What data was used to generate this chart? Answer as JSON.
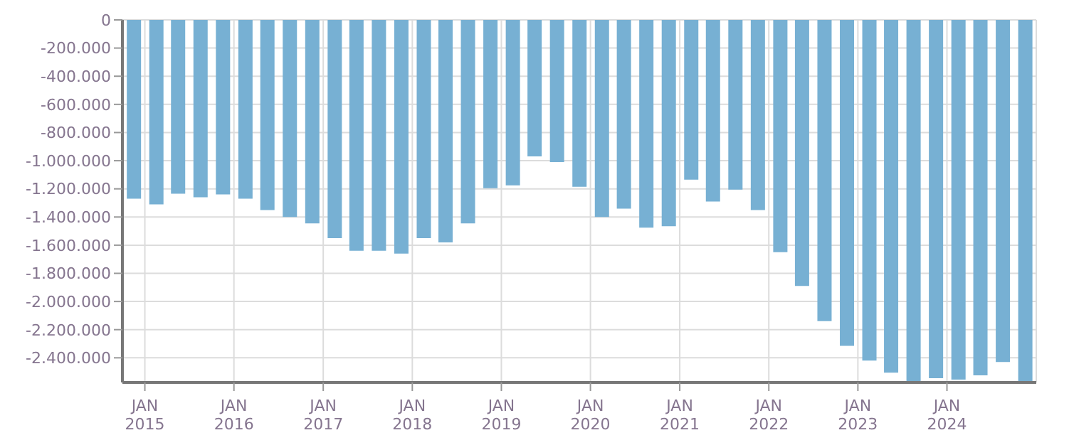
{
  "chart_data": {
    "type": "bar",
    "color": "#77b0d3",
    "grid": true,
    "x": [
      "2014-11-15",
      "2015-02-15",
      "2015-05-15",
      "2015-08-15",
      "2015-11-15",
      "2016-02-15",
      "2016-05-15",
      "2016-08-15",
      "2016-11-15",
      "2017-02-15",
      "2017-05-15",
      "2017-08-15",
      "2017-11-15",
      "2018-02-15",
      "2018-05-15",
      "2018-08-15",
      "2018-11-15",
      "2019-02-15",
      "2019-05-15",
      "2019-08-15",
      "2019-11-15",
      "2020-02-15",
      "2020-05-15",
      "2020-08-15",
      "2020-11-15",
      "2021-02-15",
      "2021-05-15",
      "2021-08-15",
      "2021-11-15",
      "2022-02-15",
      "2022-05-15",
      "2022-08-15",
      "2022-11-15",
      "2023-02-15",
      "2023-05-15",
      "2023-08-15",
      "2023-11-15",
      "2024-02-15",
      "2024-05-15",
      "2024-08-15",
      "2024-11-15"
    ],
    "values": [
      -1270000,
      -1310000,
      -1235000,
      -1260000,
      -1240000,
      -1270000,
      -1350000,
      -1400000,
      -1445000,
      -1550000,
      -1640000,
      -1640000,
      -1660000,
      -1550000,
      -1580000,
      -1445000,
      -1195000,
      -1175000,
      -970000,
      -1010000,
      -1185000,
      -1400000,
      -1340000,
      -1475000,
      -1465000,
      -1135000,
      -1290000,
      -1205000,
      -1350000,
      -1650000,
      -1890000,
      -2140000,
      -2315000,
      -2420000,
      -2505000,
      -2570000,
      -2545000,
      -2555000,
      -2525000,
      -2430000,
      -2565000
    ],
    "xlim": [
      "2014-10-01",
      "2025-01-01"
    ],
    "xticks": [
      {
        "value": "2015-01-01",
        "label": "JAN 2015"
      },
      {
        "value": "2016-01-01",
        "label": "JAN 2016"
      },
      {
        "value": "2017-01-01",
        "label": "JAN 2017"
      },
      {
        "value": "2018-01-01",
        "label": "JAN 2018"
      },
      {
        "value": "2019-01-01",
        "label": "JAN 2019"
      },
      {
        "value": "2020-01-01",
        "label": "JAN 2020"
      },
      {
        "value": "2021-01-01",
        "label": "JAN 2021"
      },
      {
        "value": "2022-01-01",
        "label": "JAN 2022"
      },
      {
        "value": "2023-01-01",
        "label": "JAN 2023"
      },
      {
        "value": "2024-01-01",
        "label": "JAN 2024"
      }
    ],
    "ylim": [
      -2575000,
      0
    ],
    "yticks": [
      0,
      {
        "value": -200000,
        "label": "-200.000"
      },
      {
        "value": -400000,
        "label": "-400.000"
      },
      {
        "value": -600000,
        "label": "-600.000"
      },
      {
        "value": -800000,
        "label": "-800.000"
      },
      {
        "value": -1000000,
        "label": "-1.000.000"
      },
      {
        "value": -1200000,
        "label": "-1.200.000"
      },
      {
        "value": -1400000,
        "label": "-1.400.000"
      },
      {
        "value": -1600000,
        "label": "-1.600.000"
      },
      {
        "value": -1800000,
        "label": "-1.800.000"
      },
      {
        "value": -2000000,
        "label": "-2.000.000"
      },
      {
        "value": -2200000,
        "label": "-2.200.000"
      },
      {
        "value": -2400000,
        "label": "-2.400.000"
      }
    ]
  }
}
